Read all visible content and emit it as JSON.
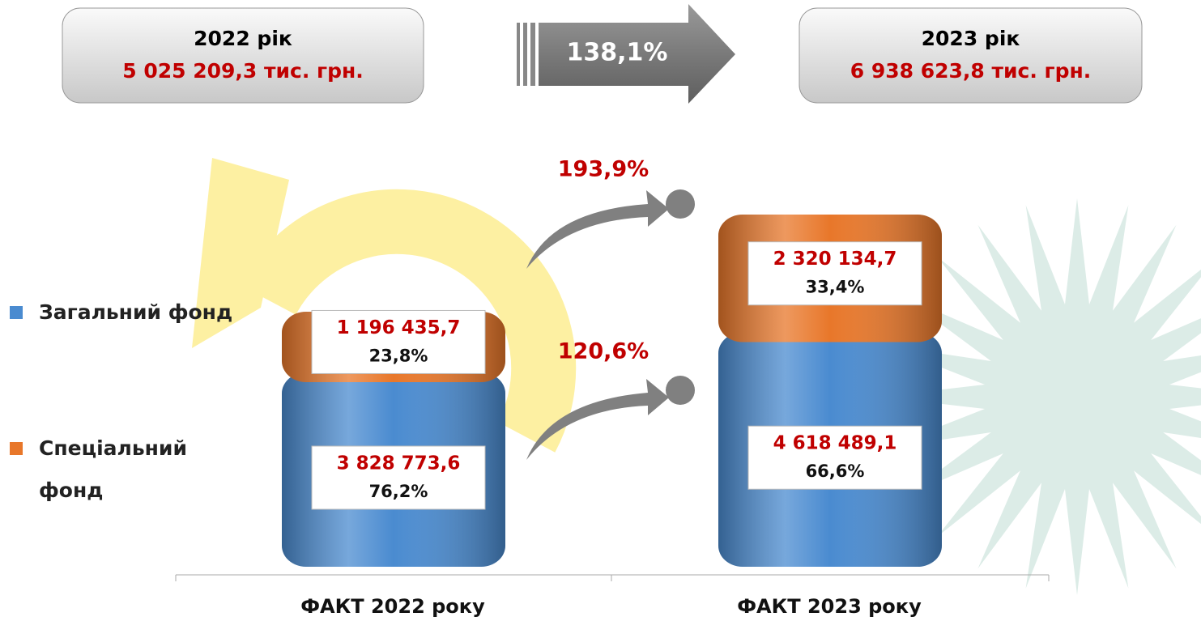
{
  "chart_data": {
    "type": "bar",
    "stacked": true,
    "total_titles": [
      "2022 рік",
      "2023 рік"
    ],
    "totals": [
      "5 025 209,3 тис. грн.",
      "6 938 623,8 тис. грн."
    ],
    "total_growth": "138,1%",
    "categories": [
      "ФАКТ 2022 року",
      "ФАКТ 2023 року"
    ],
    "series": [
      {
        "name": "Загальний фонд",
        "color": "#4a8bd0",
        "values": [
          3828773.6,
          4618489.1
        ],
        "value_labels": [
          "3 828 773,6",
          "4 618 489,1"
        ],
        "share_labels": [
          "76,2%",
          "66,6%"
        ],
        "growth_label": "120,6%"
      },
      {
        "name": "Спеціальний фонд",
        "color": "#e8772a",
        "values": [
          1196435.7,
          2320134.7
        ],
        "value_labels": [
          "1 196 435,7",
          "2 320 134,7"
        ],
        "share_labels": [
          "23,8%",
          "33,4%"
        ],
        "growth_label": "193,9%"
      }
    ]
  }
}
